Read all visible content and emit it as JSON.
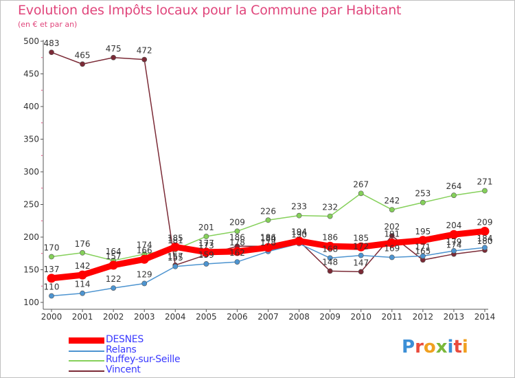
{
  "title": "Evolution des Impôts locaux pour la Commune par Habitant",
  "subtitle": "(en € et par an)",
  "logo": {
    "text": "Proxiti",
    "letters": [
      {
        "ch": "P",
        "color": "#3c8fd6"
      },
      {
        "ch": "r",
        "color": "#e94b3c"
      },
      {
        "ch": "o",
        "color": "#f0a020"
      },
      {
        "ch": "x",
        "color": "#7ab83a"
      },
      {
        "ch": "i",
        "color": "#3c8fd6"
      },
      {
        "ch": "t",
        "color": "#e94b3c"
      },
      {
        "ch": "i",
        "color": "#f0a020"
      }
    ]
  },
  "chart_data": {
    "type": "line",
    "x": [
      "2000",
      "2001",
      "2002",
      "2003",
      "2004",
      "2005",
      "2006",
      "2007",
      "2008",
      "2009",
      "2010",
      "2011",
      "2012",
      "2013",
      "2014"
    ],
    "ylim": [
      100,
      500
    ],
    "yticks": [
      "100",
      "150",
      "200",
      "250",
      "300",
      "350",
      "400",
      "450",
      "500"
    ],
    "grid": false,
    "legend_position": "bottom-left",
    "series": [
      {
        "name": "DESNES",
        "color": "#ff0000",
        "values": [
          137,
          142,
          157,
          166,
          185,
          177,
          178,
          184,
          194,
          186,
          185,
          191,
          195,
          204,
          209
        ],
        "labels": [
          "137",
          "142",
          "157",
          "166",
          "185",
          "177",
          "178",
          "184",
          "194",
          "186",
          "185",
          "191",
          "195",
          "204",
          "209"
        ]
      },
      {
        "name": "Relans",
        "color": "#4d94d0",
        "values": [
          110,
          114,
          122,
          129,
          155,
          159,
          162,
          178,
          190,
          168,
          172,
          169,
          171,
          179,
          184
        ],
        "labels": [
          "110",
          "114",
          "122",
          "129",
          "155",
          "159",
          "162",
          "178",
          "190",
          "168",
          "172",
          "169",
          "171",
          "179",
          "184"
        ]
      },
      {
        "name": "Ruffey-sur-Seille",
        "color": "#85d05a",
        "values": [
          170,
          176,
          164,
          174,
          181,
          201,
          209,
          226,
          233,
          232,
          267,
          242,
          253,
          264,
          271
        ],
        "labels": [
          "170",
          "176",
          "164",
          "174",
          "181",
          "201",
          "209",
          "226",
          "233",
          "232",
          "267",
          "242",
          "253",
          "264",
          "271"
        ]
      },
      {
        "name": "Vincent",
        "color": "#7b2a36",
        "values": [
          483,
          465,
          475,
          472,
          157,
          173,
          186,
          186,
          194,
          148,
          147,
          202,
          165,
          174,
          180
        ],
        "labels": [
          "483",
          "465",
          "475",
          "472",
          "157",
          "173",
          "186",
          "186",
          "194",
          "148",
          "147",
          "202",
          "165",
          "174",
          "180"
        ]
      }
    ]
  }
}
